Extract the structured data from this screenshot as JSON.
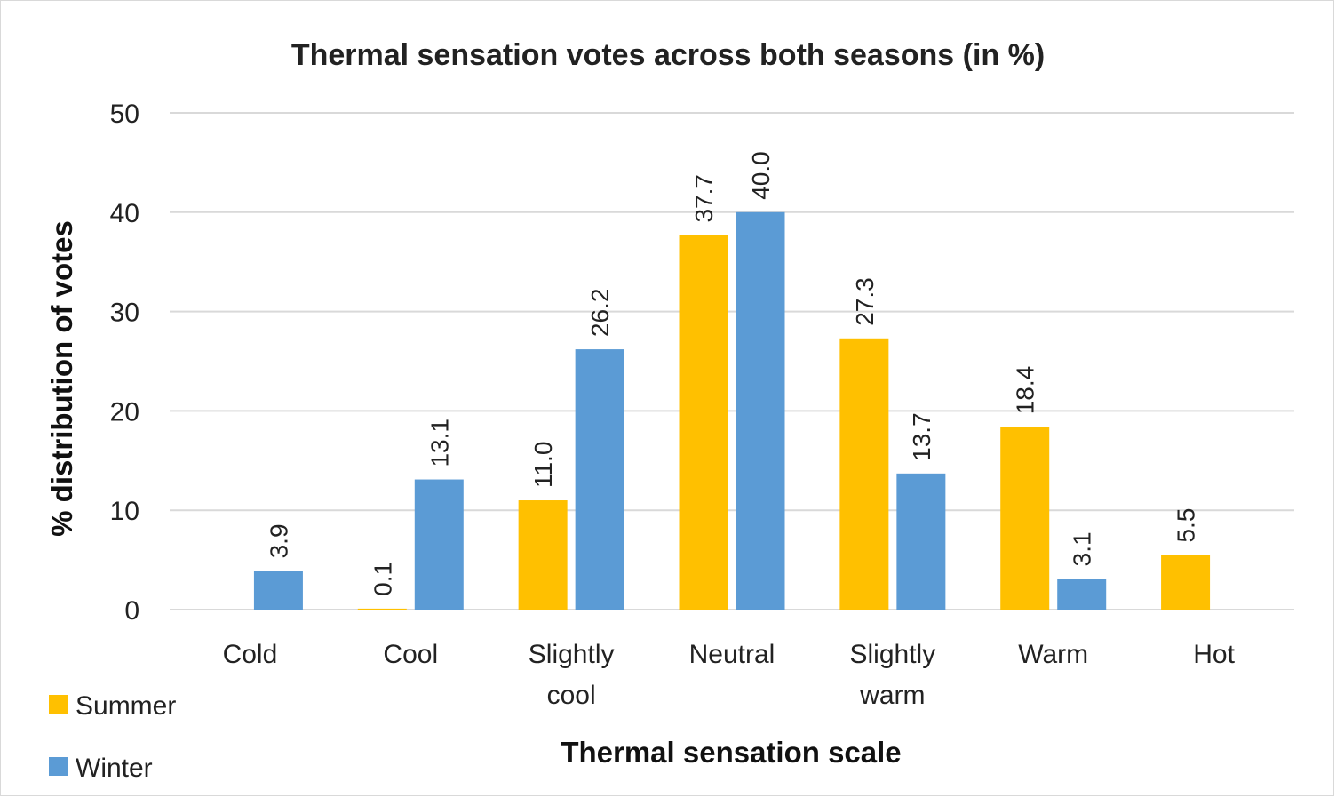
{
  "chart_data": {
    "type": "bar",
    "title": "Thermal sensation votes across both seasons (in %)",
    "xlabel": "Thermal sensation scale",
    "ylabel": "% distribution of votes",
    "categories": [
      [
        "Cold"
      ],
      [
        "Cool"
      ],
      [
        "Slightly",
        "cool"
      ],
      [
        "Neutral"
      ],
      [
        "Slightly",
        "warm"
      ],
      [
        "Warm"
      ],
      [
        "Hot"
      ]
    ],
    "series": [
      {
        "name": "Summer",
        "color": "#FFC000",
        "values": [
          null,
          0.1,
          11.0,
          37.7,
          27.3,
          18.4,
          5.5
        ],
        "labels": [
          "",
          "0.1",
          "11.0",
          "37.7",
          "27.3",
          "18.4",
          "5.5"
        ]
      },
      {
        "name": "Winter",
        "color": "#5B9BD5",
        "values": [
          3.9,
          13.1,
          26.2,
          40.0,
          13.7,
          3.1,
          null
        ],
        "labels": [
          "3.9",
          "13.1",
          "26.2",
          "40.0",
          "13.7",
          "3.1",
          ""
        ]
      }
    ],
    "ylim": [
      0,
      50
    ],
    "yticks": [
      "0",
      "10",
      "20",
      "30",
      "40",
      "50"
    ],
    "grid": true,
    "legend_position": "bottom-left"
  }
}
